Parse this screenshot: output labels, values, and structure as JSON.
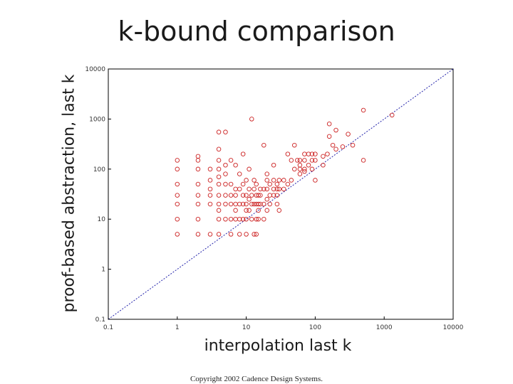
{
  "title": "k-bound comparison",
  "copyright": "Copyright 2002 Cadence Design Systems.",
  "colors": {
    "points": "#cc2222",
    "diagonal": "#2222aa",
    "axes": "#000000"
  },
  "chart_data": {
    "type": "scatter",
    "xlabel": "interpolation last k",
    "ylabel": "proof-based abstraction, last k",
    "xscale": "log",
    "yscale": "log",
    "xlim": [
      0.1,
      10000
    ],
    "ylim": [
      0.1,
      10000
    ],
    "x_tick_labels": [
      "0.1",
      "1",
      "10",
      "100",
      "1000",
      "10000"
    ],
    "y_tick_labels": [
      "0.1",
      "1",
      "10",
      "100",
      "1000",
      "10000"
    ],
    "reference_line": "y = x",
    "grid": false,
    "marker": "circle",
    "points": [
      [
        1,
        5
      ],
      [
        1,
        10
      ],
      [
        1,
        20
      ],
      [
        1,
        30
      ],
      [
        1,
        50
      ],
      [
        1,
        100
      ],
      [
        1,
        150
      ],
      [
        2,
        5
      ],
      [
        2,
        10
      ],
      [
        2,
        20
      ],
      [
        2,
        30
      ],
      [
        2,
        50
      ],
      [
        2,
        100
      ],
      [
        2,
        150
      ],
      [
        2,
        180
      ],
      [
        3,
        5
      ],
      [
        3,
        20
      ],
      [
        3,
        30
      ],
      [
        3,
        40
      ],
      [
        3,
        60
      ],
      [
        3,
        100
      ],
      [
        4,
        5
      ],
      [
        4,
        10
      ],
      [
        4,
        15
      ],
      [
        4,
        20
      ],
      [
        4,
        30
      ],
      [
        4,
        50
      ],
      [
        4,
        70
      ],
      [
        4,
        100
      ],
      [
        4,
        150
      ],
      [
        4,
        250
      ],
      [
        4,
        550
      ],
      [
        5,
        10
      ],
      [
        5,
        20
      ],
      [
        5,
        30
      ],
      [
        5,
        50
      ],
      [
        5,
        80
      ],
      [
        5,
        120
      ],
      [
        5,
        550
      ],
      [
        6,
        5
      ],
      [
        6,
        10
      ],
      [
        6,
        20
      ],
      [
        6,
        30
      ],
      [
        6,
        50
      ],
      [
        6,
        150
      ],
      [
        7,
        10
      ],
      [
        7,
        15
      ],
      [
        7,
        20
      ],
      [
        7,
        30
      ],
      [
        7,
        40
      ],
      [
        7,
        120
      ],
      [
        8,
        5
      ],
      [
        8,
        10
      ],
      [
        8,
        20
      ],
      [
        8,
        40
      ],
      [
        8,
        80
      ],
      [
        9,
        10
      ],
      [
        9,
        20
      ],
      [
        9,
        30
      ],
      [
        9,
        50
      ],
      [
        9,
        200
      ],
      [
        10,
        5
      ],
      [
        10,
        10
      ],
      [
        10,
        15
      ],
      [
        10,
        20
      ],
      [
        10,
        30
      ],
      [
        10,
        60
      ],
      [
        11,
        15
      ],
      [
        11,
        25
      ],
      [
        11,
        40
      ],
      [
        11,
        100
      ],
      [
        12,
        10
      ],
      [
        12,
        20
      ],
      [
        12,
        30
      ],
      [
        12,
        1000
      ],
      [
        13,
        5
      ],
      [
        13,
        20
      ],
      [
        13,
        40
      ],
      [
        13,
        60
      ],
      [
        14,
        5
      ],
      [
        14,
        10
      ],
      [
        14,
        20
      ],
      [
        14,
        30
      ],
      [
        14,
        50
      ],
      [
        15,
        10
      ],
      [
        15,
        15
      ],
      [
        15,
        20
      ],
      [
        15,
        30
      ],
      [
        16,
        20
      ],
      [
        16,
        30
      ],
      [
        16,
        40
      ],
      [
        18,
        10
      ],
      [
        18,
        20
      ],
      [
        18,
        40
      ],
      [
        18,
        300
      ],
      [
        20,
        15
      ],
      [
        20,
        25
      ],
      [
        20,
        40
      ],
      [
        20,
        60
      ],
      [
        20,
        80
      ],
      [
        22,
        20
      ],
      [
        22,
        30
      ],
      [
        22,
        50
      ],
      [
        25,
        30
      ],
      [
        25,
        40
      ],
      [
        25,
        60
      ],
      [
        25,
        120
      ],
      [
        28,
        20
      ],
      [
        28,
        30
      ],
      [
        28,
        40
      ],
      [
        28,
        50
      ],
      [
        30,
        15
      ],
      [
        30,
        40
      ],
      [
        30,
        60
      ],
      [
        35,
        40
      ],
      [
        35,
        60
      ],
      [
        40,
        50
      ],
      [
        40,
        200
      ],
      [
        45,
        60
      ],
      [
        45,
        150
      ],
      [
        50,
        100
      ],
      [
        50,
        300
      ],
      [
        55,
        150
      ],
      [
        60,
        80
      ],
      [
        60,
        100
      ],
      [
        60,
        120
      ],
      [
        60,
        150
      ],
      [
        70,
        150
      ],
      [
        70,
        200
      ],
      [
        70,
        100
      ],
      [
        70,
        90
      ],
      [
        80,
        120
      ],
      [
        80,
        200
      ],
      [
        90,
        150
      ],
      [
        90,
        200
      ],
      [
        90,
        100
      ],
      [
        100,
        150
      ],
      [
        100,
        200
      ],
      [
        100,
        60
      ],
      [
        130,
        120
      ],
      [
        130,
        180
      ],
      [
        150,
        200
      ],
      [
        160,
        450
      ],
      [
        160,
        800
      ],
      [
        180,
        300
      ],
      [
        200,
        250
      ],
      [
        200,
        600
      ],
      [
        250,
        280
      ],
      [
        300,
        500
      ],
      [
        350,
        300
      ],
      [
        500,
        150
      ],
      [
        500,
        1500
      ],
      [
        1300,
        1200
      ]
    ]
  }
}
